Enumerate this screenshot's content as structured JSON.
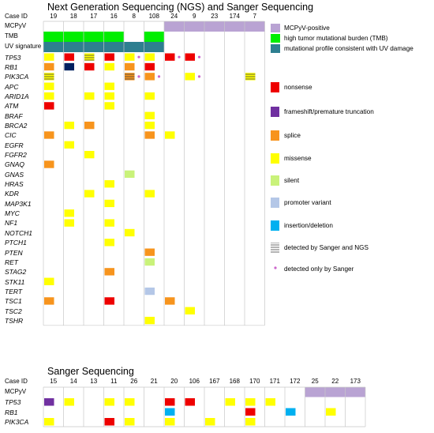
{
  "ngs_title": "Next Generation Sequencing (NGS) and Sanger Sequencing",
  "sanger_title": "Sanger Sequencing",
  "case_id_label": "Case ID",
  "ngs": {
    "cases": [
      "19",
      "18",
      "17",
      "16",
      "8",
      "108",
      "24",
      "9",
      "23",
      "174",
      "7"
    ],
    "row_labels": [
      "MCPyV",
      "TMB",
      "UV signature"
    ],
    "genes": [
      "TP53",
      "RB1",
      "PIK3CA",
      "APC",
      "ARID1A",
      "ATM",
      "BRAF",
      "BRCA2",
      "CIC",
      "EGFR",
      "FGFR2",
      "GNAQ",
      "GNAS",
      "HRAS",
      "KDR",
      "MAP3K1",
      "MYC",
      "NF1",
      "NOTCH1",
      "PTCH1",
      "PTEN",
      "RET",
      "STAG2",
      "STK11",
      "TERT",
      "TSC1",
      "TSC2",
      "TSHR"
    ],
    "mcpyv_from": 6,
    "tmb_cols": [
      0,
      1,
      2,
      3,
      5
    ],
    "uv_cols": [
      0,
      1,
      2,
      3,
      4,
      5
    ],
    "cells": [
      {
        "r": 0,
        "c": 0,
        "t": "missense"
      },
      {
        "r": 0,
        "c": 1,
        "t": "nonsense"
      },
      {
        "r": 0,
        "c": 2,
        "t": "missense",
        "h": true
      },
      {
        "r": 0,
        "c": 3,
        "t": "nonsense"
      },
      {
        "r": 0,
        "c": 4,
        "t": "missense",
        "d": true
      },
      {
        "r": 0,
        "c": 5,
        "t": "missense"
      },
      {
        "r": 0,
        "c": 6,
        "t": "nonsense",
        "d": true
      },
      {
        "r": 0,
        "c": 7,
        "t": "nonsense",
        "d": true
      },
      {
        "r": 1,
        "c": 0,
        "t": "splice"
      },
      {
        "r": 1,
        "c": 1,
        "t": "navy"
      },
      {
        "r": 1,
        "c": 2,
        "t": "nonsense"
      },
      {
        "r": 1,
        "c": 3,
        "t": "missense"
      },
      {
        "r": 1,
        "c": 4,
        "t": "splice"
      },
      {
        "r": 1,
        "c": 5,
        "t": "nonsense"
      },
      {
        "r": 2,
        "c": 0,
        "t": "missense",
        "h": true
      },
      {
        "r": 2,
        "c": 4,
        "t": "splice",
        "h": true,
        "d": true
      },
      {
        "r": 2,
        "c": 5,
        "t": "splice",
        "d": true
      },
      {
        "r": 2,
        "c": 7,
        "t": "missense",
        "d": true
      },
      {
        "r": 2,
        "c": 10,
        "t": "missense",
        "h": true
      },
      {
        "r": 3,
        "c": 0,
        "t": "missense"
      },
      {
        "r": 3,
        "c": 3,
        "t": "missense"
      },
      {
        "r": 4,
        "c": 0,
        "t": "missense"
      },
      {
        "r": 4,
        "c": 2,
        "t": "missense"
      },
      {
        "r": 4,
        "c": 3,
        "t": "missense"
      },
      {
        "r": 4,
        "c": 5,
        "t": "missense"
      },
      {
        "r": 5,
        "c": 0,
        "t": "nonsense"
      },
      {
        "r": 5,
        "c": 3,
        "t": "missense"
      },
      {
        "r": 6,
        "c": 5,
        "t": "missense"
      },
      {
        "r": 7,
        "c": 1,
        "t": "missense"
      },
      {
        "r": 7,
        "c": 2,
        "t": "splice"
      },
      {
        "r": 7,
        "c": 5,
        "t": "missense"
      },
      {
        "r": 8,
        "c": 0,
        "t": "splice"
      },
      {
        "r": 8,
        "c": 5,
        "t": "splice"
      },
      {
        "r": 8,
        "c": 6,
        "t": "missense"
      },
      {
        "r": 9,
        "c": 1,
        "t": "missense"
      },
      {
        "r": 10,
        "c": 2,
        "t": "missense"
      },
      {
        "r": 11,
        "c": 0,
        "t": "splice"
      },
      {
        "r": 12,
        "c": 4,
        "t": "silent"
      },
      {
        "r": 13,
        "c": 3,
        "t": "missense"
      },
      {
        "r": 14,
        "c": 2,
        "t": "missense"
      },
      {
        "r": 14,
        "c": 5,
        "t": "missense"
      },
      {
        "r": 15,
        "c": 3,
        "t": "missense"
      },
      {
        "r": 16,
        "c": 1,
        "t": "missense"
      },
      {
        "r": 17,
        "c": 1,
        "t": "missense"
      },
      {
        "r": 17,
        "c": 3,
        "t": "missense"
      },
      {
        "r": 18,
        "c": 4,
        "t": "missense"
      },
      {
        "r": 19,
        "c": 3,
        "t": "missense"
      },
      {
        "r": 20,
        "c": 5,
        "t": "splice"
      },
      {
        "r": 21,
        "c": 5,
        "t": "silent"
      },
      {
        "r": 22,
        "c": 3,
        "t": "splice"
      },
      {
        "r": 23,
        "c": 0,
        "t": "missense"
      },
      {
        "r": 24,
        "c": 5,
        "t": "promoter"
      },
      {
        "r": 25,
        "c": 0,
        "t": "splice"
      },
      {
        "r": 25,
        "c": 3,
        "t": "nonsense"
      },
      {
        "r": 25,
        "c": 6,
        "t": "splice"
      },
      {
        "r": 26,
        "c": 7,
        "t": "missense"
      },
      {
        "r": 27,
        "c": 5,
        "t": "missense"
      }
    ]
  },
  "sanger": {
    "cases": [
      "15",
      "14",
      "13",
      "11",
      "26",
      "21",
      "20",
      "106",
      "167",
      "168",
      "170",
      "171",
      "172",
      "25",
      "22",
      "173"
    ],
    "row_labels": [
      "MCPyV"
    ],
    "genes": [
      "TP53",
      "RB1",
      "PIK3CA"
    ],
    "mcpyv_from": 13,
    "cells": [
      {
        "r": 0,
        "c": 0,
        "t": "frameshift"
      },
      {
        "r": 0,
        "c": 1,
        "t": "missense"
      },
      {
        "r": 0,
        "c": 3,
        "t": "missense"
      },
      {
        "r": 0,
        "c": 4,
        "t": "missense"
      },
      {
        "r": 0,
        "c": 6,
        "t": "nonsense"
      },
      {
        "r": 0,
        "c": 7,
        "t": "nonsense"
      },
      {
        "r": 0,
        "c": 9,
        "t": "missense"
      },
      {
        "r": 0,
        "c": 10,
        "t": "missense"
      },
      {
        "r": 0,
        "c": 11,
        "t": "missense"
      },
      {
        "r": 1,
        "c": 6,
        "t": "indel"
      },
      {
        "r": 1,
        "c": 10,
        "t": "nonsense"
      },
      {
        "r": 1,
        "c": 12,
        "t": "indel"
      },
      {
        "r": 1,
        "c": 14,
        "t": "missense"
      },
      {
        "r": 2,
        "c": 0,
        "t": "missense"
      },
      {
        "r": 2,
        "c": 3,
        "t": "nonsense"
      },
      {
        "r": 2,
        "c": 4,
        "t": "missense"
      },
      {
        "r": 2,
        "c": 6,
        "t": "missense"
      },
      {
        "r": 2,
        "c": 8,
        "t": "missense"
      },
      {
        "r": 2,
        "c": 10,
        "t": "missense"
      }
    ]
  },
  "legend": [
    {
      "key": "mcpyv",
      "label": "MCPyV-positive",
      "color": "#b9a3d3"
    },
    {
      "key": "tmb",
      "label": "high tumor mutational burden (TMB)",
      "color": "#00ee00"
    },
    {
      "key": "uv",
      "label": "mutational profile consistent with UV damage",
      "color": "#2e7f90"
    },
    {
      "key": "nonsense",
      "label": "nonsense",
      "color": "#ee0000"
    },
    {
      "key": "frameshift",
      "label": "frameshift/premature truncation",
      "color": "#7030a0"
    },
    {
      "key": "splice",
      "label": "splice",
      "color": "#f7941d"
    },
    {
      "key": "missense",
      "label": "missense",
      "color": "#ffff00"
    },
    {
      "key": "silent",
      "label": "silent",
      "color": "#c9f27a"
    },
    {
      "key": "promoter",
      "label": "promoter variant",
      "color": "#b4c7e7"
    },
    {
      "key": "indel",
      "label": "insertion/deletion",
      "color": "#00b0f0"
    },
    {
      "key": "hatch",
      "label": "detected by Sanger and NGS",
      "color": "#888888"
    },
    {
      "key": "dot",
      "label": "detected only by Sanger",
      "color": "#cc66cc"
    }
  ],
  "colors": {
    "navy": "#002060",
    "grid": "#c8c8c8"
  }
}
